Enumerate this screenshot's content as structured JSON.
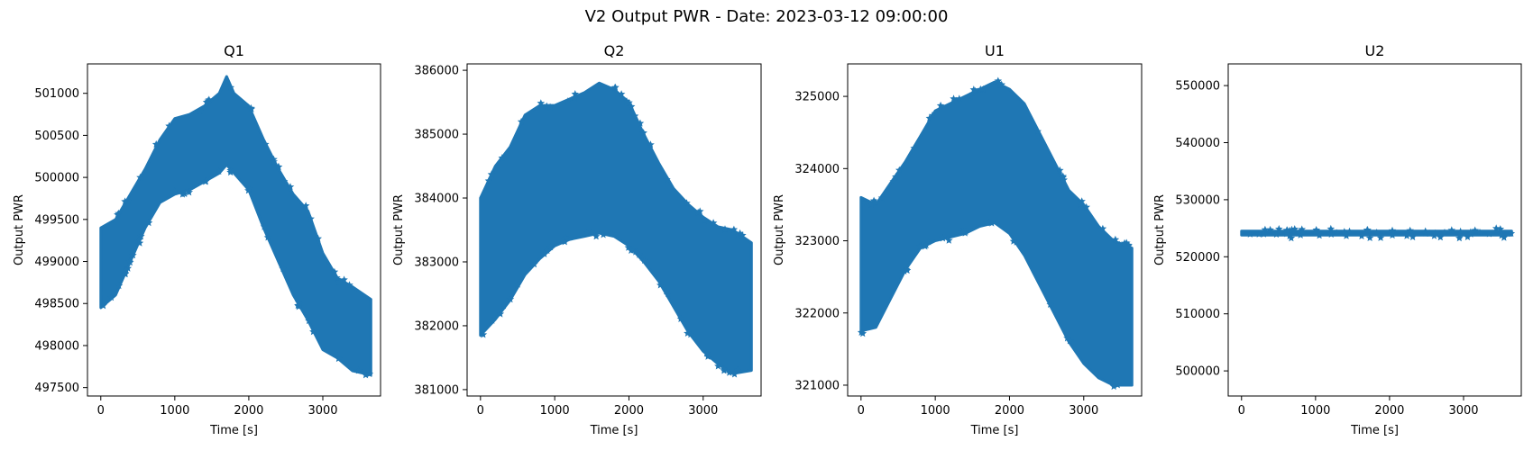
{
  "figure": {
    "title": "V2 Output PWR - Date: 2023-03-12 09:00:00",
    "marker_color": "#1f77b4"
  },
  "chart_data": [
    {
      "type": "scatter",
      "title": "Q1",
      "xlabel": "Time [s]",
      "ylabel": "Output PWR",
      "xlim": [
        -180,
        3780
      ],
      "ylim": [
        497400,
        501350
      ],
      "xticks": [
        0,
        1000,
        2000,
        3000
      ],
      "yticks": [
        497500,
        498000,
        498500,
        499000,
        499500,
        500000,
        500500,
        501000
      ],
      "marker": "star",
      "upper": [
        [
          0,
          499400
        ],
        [
          200,
          499500
        ],
        [
          400,
          499800
        ],
        [
          600,
          500100
        ],
        [
          800,
          500450
        ],
        [
          1000,
          500700
        ],
        [
          1200,
          500750
        ],
        [
          1400,
          500850
        ],
        [
          1600,
          501000
        ],
        [
          1700,
          501200
        ],
        [
          1800,
          501000
        ],
        [
          2000,
          500850
        ],
        [
          2200,
          500450
        ],
        [
          2400,
          500100
        ],
        [
          2600,
          499800
        ],
        [
          2800,
          499600
        ],
        [
          3000,
          499100
        ],
        [
          3200,
          498800
        ],
        [
          3400,
          498700
        ],
        [
          3650,
          498550
        ]
      ],
      "lower": [
        [
          0,
          498450
        ],
        [
          200,
          498600
        ],
        [
          400,
          499000
        ],
        [
          600,
          499400
        ],
        [
          800,
          499700
        ],
        [
          1000,
          499800
        ],
        [
          1200,
          499850
        ],
        [
          1400,
          499950
        ],
        [
          1600,
          500050
        ],
        [
          1700,
          500150
        ],
        [
          1800,
          500050
        ],
        [
          2000,
          499850
        ],
        [
          2200,
          499400
        ],
        [
          2400,
          499000
        ],
        [
          2600,
          498600
        ],
        [
          2800,
          498300
        ],
        [
          3000,
          497950
        ],
        [
          3200,
          497850
        ],
        [
          3400,
          497700
        ],
        [
          3650,
          497650
        ]
      ]
    },
    {
      "type": "scatter",
      "title": "Q2",
      "xlabel": "Time [s]",
      "ylabel": "Output PWR",
      "xlim": [
        -180,
        3780
      ],
      "ylim": [
        380900,
        386100
      ],
      "xticks": [
        0,
        1000,
        2000,
        3000
      ],
      "yticks": [
        381000,
        382000,
        383000,
        384000,
        385000,
        386000
      ],
      "marker": "star",
      "upper": [
        [
          0,
          384000
        ],
        [
          200,
          384500
        ],
        [
          400,
          384800
        ],
        [
          600,
          385300
        ],
        [
          800,
          385450
        ],
        [
          1000,
          385450
        ],
        [
          1200,
          385550
        ],
        [
          1400,
          385650
        ],
        [
          1600,
          385800
        ],
        [
          1800,
          385700
        ],
        [
          2000,
          385500
        ],
        [
          2200,
          385000
        ],
        [
          2400,
          384550
        ],
        [
          2600,
          384150
        ],
        [
          2800,
          383900
        ],
        [
          3000,
          383700
        ],
        [
          3200,
          383550
        ],
        [
          3400,
          383500
        ],
        [
          3650,
          383300
        ]
      ],
      "lower": [
        [
          0,
          381850
        ],
        [
          200,
          382100
        ],
        [
          400,
          382400
        ],
        [
          600,
          382800
        ],
        [
          800,
          383050
        ],
        [
          1000,
          383250
        ],
        [
          1200,
          383350
        ],
        [
          1400,
          383400
        ],
        [
          1600,
          383450
        ],
        [
          1800,
          383400
        ],
        [
          2000,
          383250
        ],
        [
          2200,
          383000
        ],
        [
          2400,
          382700
        ],
        [
          2600,
          382300
        ],
        [
          2800,
          381900
        ],
        [
          3000,
          381600
        ],
        [
          3200,
          381400
        ],
        [
          3400,
          381250
        ],
        [
          3650,
          381300
        ]
      ]
    },
    {
      "type": "scatter",
      "title": "U1",
      "xlabel": "Time [s]",
      "ylabel": "Output PWR",
      "xlim": [
        -180,
        3780
      ],
      "ylim": [
        320850,
        325450
      ],
      "xticks": [
        0,
        1000,
        2000,
        3000
      ],
      "yticks": [
        321000,
        322000,
        323000,
        324000,
        325000
      ],
      "marker": "star",
      "upper": [
        [
          0,
          323600
        ],
        [
          200,
          323500
        ],
        [
          400,
          323800
        ],
        [
          600,
          324100
        ],
        [
          800,
          324450
        ],
        [
          1000,
          324800
        ],
        [
          1200,
          324900
        ],
        [
          1400,
          325000
        ],
        [
          1600,
          325100
        ],
        [
          1800,
          325200
        ],
        [
          2000,
          325100
        ],
        [
          2200,
          324900
        ],
        [
          2400,
          324500
        ],
        [
          2600,
          324100
        ],
        [
          2800,
          323700
        ],
        [
          3000,
          323500
        ],
        [
          3200,
          323200
        ],
        [
          3400,
          323000
        ],
        [
          3650,
          322900
        ]
      ],
      "lower": [
        [
          0,
          321750
        ],
        [
          200,
          321800
        ],
        [
          400,
          322200
        ],
        [
          600,
          322600
        ],
        [
          800,
          322900
        ],
        [
          1000,
          323000
        ],
        [
          1200,
          323050
        ],
        [
          1400,
          323100
        ],
        [
          1600,
          323200
        ],
        [
          1800,
          323250
        ],
        [
          2000,
          323100
        ],
        [
          2200,
          322800
        ],
        [
          2400,
          322400
        ],
        [
          2600,
          322000
        ],
        [
          2800,
          321600
        ],
        [
          3000,
          321300
        ],
        [
          3200,
          321100
        ],
        [
          3400,
          321000
        ],
        [
          3650,
          321000
        ]
      ]
    },
    {
      "type": "scatter",
      "title": "U2",
      "xlabel": "Time [s]",
      "ylabel": "Output PWR",
      "xlim": [
        -180,
        3780
      ],
      "ylim": [
        495600,
        553800
      ],
      "xticks": [
        0,
        1000,
        2000,
        3000
      ],
      "yticks": [
        500000,
        510000,
        520000,
        530000,
        540000,
        550000
      ],
      "marker": "star",
      "upper": [
        [
          0,
          524500
        ],
        [
          3650,
          524500
        ]
      ],
      "lower": [
        [
          0,
          523800
        ],
        [
          3650,
          523800
        ]
      ]
    }
  ]
}
